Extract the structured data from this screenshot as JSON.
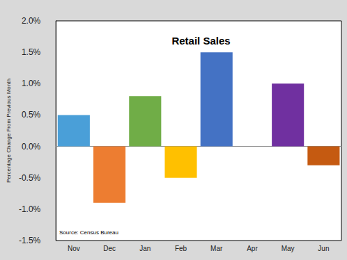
{
  "chart_data": {
    "type": "bar",
    "title": "Retail Sales",
    "y_label": "Percentage Change From Previous Month",
    "annotations": [
      "Source: Census Bureau"
    ],
    "categories": [
      "Nov",
      "Dec",
      "Jan",
      "Feb",
      "Mar",
      "Apr",
      "May",
      "Jun"
    ],
    "values": [
      0.5,
      -0.9,
      0.8,
      -0.5,
      1.5,
      0,
      1.0,
      -0.3
    ],
    "colors": [
      "#4a9fd8",
      "#ed7d31",
      "#70ad47",
      "#ffc000",
      "#4472c4",
      "#a5a5a5",
      "#7030a0",
      "#c55a11"
    ],
    "ylim": [
      -1.5,
      2.0
    ],
    "yticks": [
      {
        "value": -1.5,
        "label": "-1.5%"
      },
      {
        "value": -1.0,
        "label": "-1.0%"
      },
      {
        "value": -0.5,
        "label": "-0.5%"
      },
      {
        "value": 0,
        "label": "0.0%"
      },
      {
        "value": 0.5,
        "label": "0.5%"
      },
      {
        "value": 1.0,
        "label": "1.0%"
      },
      {
        "value": 1.5,
        "label": "1.5%"
      },
      {
        "value": 2.0,
        "label": "2.0%"
      }
    ],
    "grid": false,
    "data_labels": false
  }
}
